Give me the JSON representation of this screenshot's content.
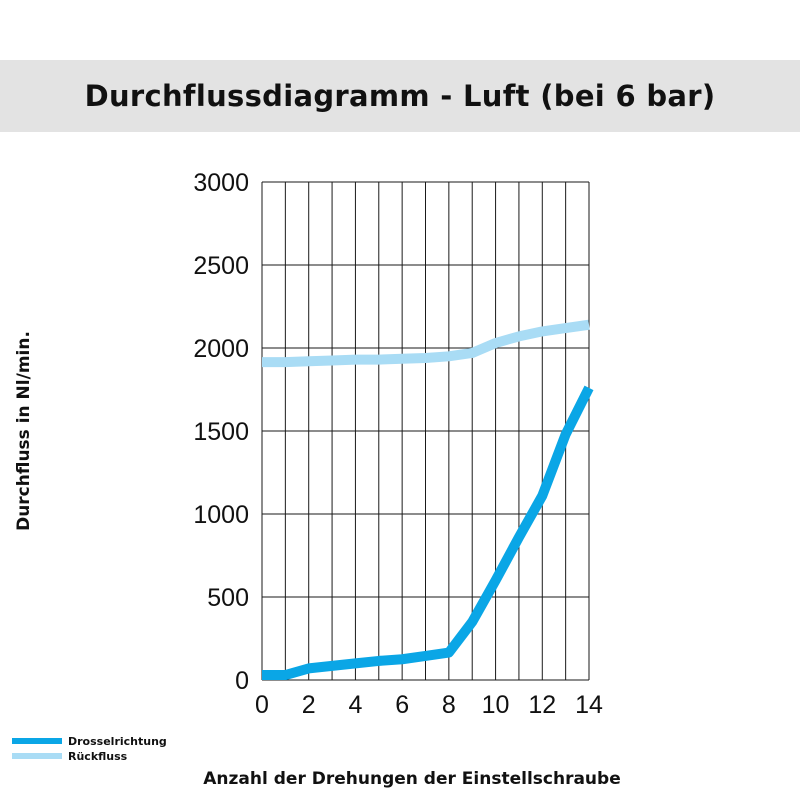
{
  "chart_data": {
    "type": "line",
    "title": "Durchflussdiagramm - Luft (bei 6 bar)",
    "xlabel": "Anzahl der Drehungen der Einstellschraube",
    "ylabel": "Durchfluss in Nl/min.",
    "xlim": [
      0,
      14
    ],
    "ylim": [
      0,
      3000
    ],
    "x_ticks": [
      0,
      2,
      4,
      6,
      8,
      10,
      12,
      14
    ],
    "y_ticks": [
      0,
      500,
      1000,
      1500,
      2000,
      2500,
      3000
    ],
    "x_grid_step": 1,
    "y_grid_step": 500,
    "grid": true,
    "legend_position": "bottom-left",
    "series": [
      {
        "name": "Drosselrichtung",
        "color": "#0aa6e6",
        "x": [
          0,
          1,
          2,
          3,
          4,
          5,
          6,
          7,
          8,
          9,
          10,
          11,
          12,
          13,
          14
        ],
        "y": [
          30,
          30,
          70,
          85,
          100,
          115,
          125,
          145,
          165,
          350,
          600,
          860,
          1110,
          1480,
          1760
        ]
      },
      {
        "name": "Rückfluss",
        "color": "#a9dcf5",
        "x": [
          0,
          1,
          2,
          3,
          4,
          5,
          6,
          7,
          8,
          9,
          10,
          11,
          12,
          13,
          14
        ],
        "y": [
          1915,
          1915,
          1920,
          1925,
          1930,
          1930,
          1935,
          1940,
          1950,
          1970,
          2030,
          2070,
          2100,
          2120,
          2140
        ]
      }
    ]
  }
}
